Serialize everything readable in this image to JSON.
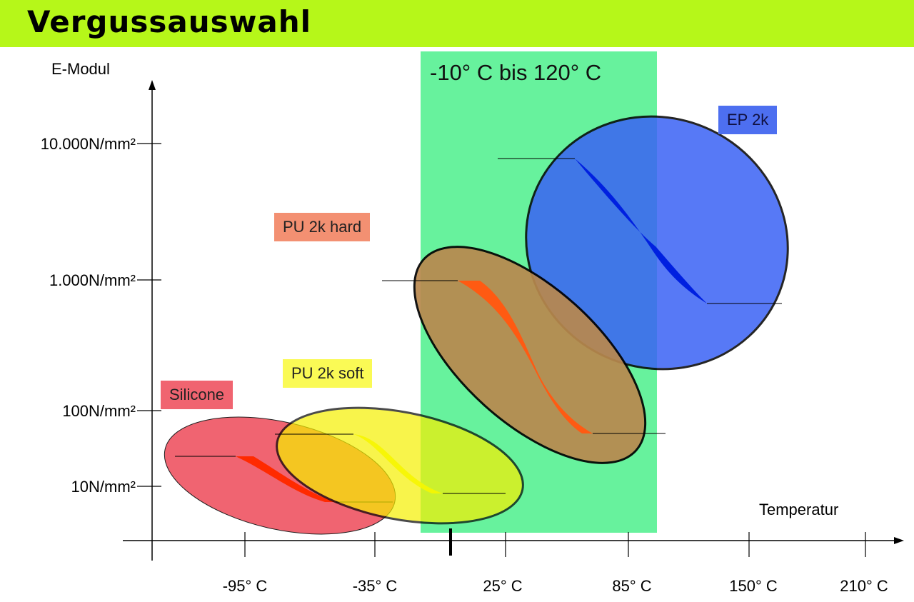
{
  "title": "Vergussauswahl",
  "y_axis_label": "E-Modul",
  "x_axis_label": "Temperatur",
  "y_ticks": [
    "10.000N/mm²",
    "1.000N/mm²",
    "100N/mm²",
    "10N/mm²"
  ],
  "x_ticks": [
    "-95° C",
    "-35° C",
    "25° C",
    "85° C",
    "150° C",
    "210° C"
  ],
  "range_band": {
    "label": "-10° C bis 120° C",
    "color": "#4cf08c"
  },
  "materials": [
    {
      "name": "Silicone",
      "label_color": "#f06470",
      "fill": "#ef4f5e",
      "core": "#ff2a00"
    },
    {
      "name": "PU 2k soft",
      "label_color": "#fafa55",
      "fill": "#f6f000",
      "core": "#f6f600"
    },
    {
      "name": "PU 2k hard",
      "label_color": "#f39072",
      "fill": "#b9884e",
      "core": "#ff5a12"
    },
    {
      "name": "EP 2k",
      "label_color": "#4d6ff0",
      "fill": "#3a62f5",
      "core": "#0020e0"
    }
  ]
}
